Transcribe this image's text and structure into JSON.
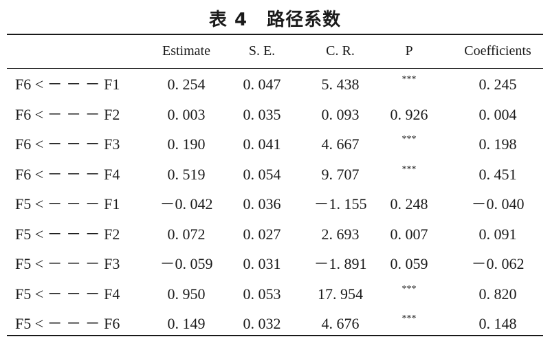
{
  "table": {
    "title_num": "表 4",
    "title_text": "路径系数",
    "headers": [
      "",
      "Estimate",
      "S. E.",
      "C. R.",
      "P",
      "Coefficients"
    ],
    "rows": [
      [
        "F6 <  －  －  －  F1",
        "0. 254",
        "0. 047",
        "5. 438",
        "***",
        "0. 245"
      ],
      [
        "F6 <  －  －  －  F2",
        "0. 003",
        "0. 035",
        "0. 093",
        "0. 926",
        "0. 004"
      ],
      [
        "F6 <  －  －  －  F3",
        "0. 190",
        "0. 041",
        "4. 667",
        "***",
        "0. 198"
      ],
      [
        "F6 <  －  －  －  F4",
        "0. 519",
        "0. 054",
        "9. 707",
        "***",
        "0. 451"
      ],
      [
        "F5 <  －  －  －  F1",
        "－0. 042",
        "0. 036",
        "－1. 155",
        "0. 248",
        "－0. 040"
      ],
      [
        "F5 <  －  －  －  F2",
        "0. 072",
        "0. 027",
        "2. 693",
        "0. 007",
        "0. 091"
      ],
      [
        "F5 <  －  －  －  F3",
        "－0. 059",
        "0. 031",
        "－1. 891",
        "0. 059",
        "－0. 062"
      ],
      [
        "F5 <  －  －  －  F4",
        "0. 950",
        "0. 053",
        "17. 954",
        "***",
        "0. 820"
      ],
      [
        "F5 <  －  －  －  F6",
        "0. 149",
        "0. 032",
        "4. 676",
        "***",
        "0. 148"
      ]
    ]
  }
}
